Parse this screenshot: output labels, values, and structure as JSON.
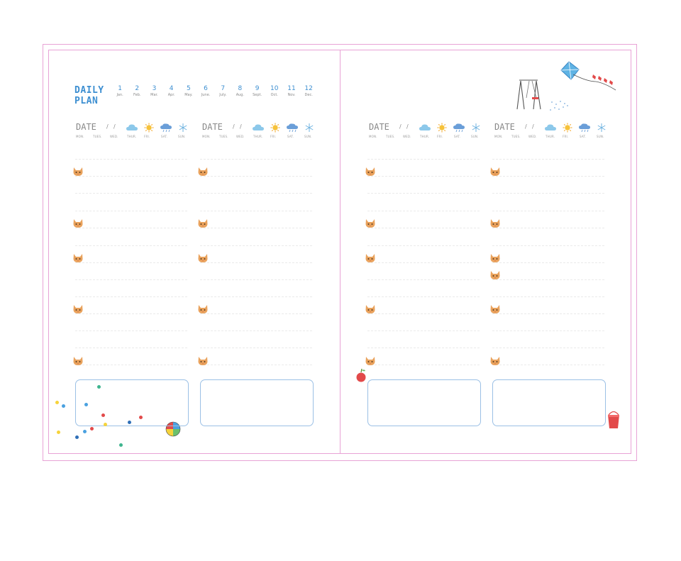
{
  "planner": {
    "title_line1": "DAILY",
    "title_line2": "PLAN",
    "months": [
      {
        "num": "1",
        "name": "Jan."
      },
      {
        "num": "2",
        "name": "Feb."
      },
      {
        "num": "3",
        "name": "Mar."
      },
      {
        "num": "4",
        "name": "Apr."
      },
      {
        "num": "5",
        "name": "May."
      },
      {
        "num": "6",
        "name": "June."
      },
      {
        "num": "7",
        "name": "July."
      },
      {
        "num": "8",
        "name": "Aug."
      },
      {
        "num": "9",
        "name": "Sept."
      },
      {
        "num": "10",
        "name": "Oct."
      },
      {
        "num": "11",
        "name": "Nov."
      },
      {
        "num": "12",
        "name": "Dec."
      }
    ],
    "date_label": "DATE",
    "date_separator": "/",
    "weekdays": [
      "MON.",
      "TUES.",
      "WED.",
      "THUR.",
      "FRI.",
      "SAT.",
      "SUN."
    ],
    "weather_icons": [
      "cloud-icon",
      "sun-icon",
      "rain-cloud-icon",
      "snowflake-icon"
    ],
    "colors": {
      "border": "#e8a3d6",
      "title": "#3d8fd1",
      "note_box": "#9bc0e5",
      "cat": "#e9a25c"
    },
    "decorations": [
      "swing-icon",
      "kite-icon",
      "beach-ball-icon",
      "apple-icon",
      "bucket-icon",
      "confetti-dots"
    ]
  }
}
